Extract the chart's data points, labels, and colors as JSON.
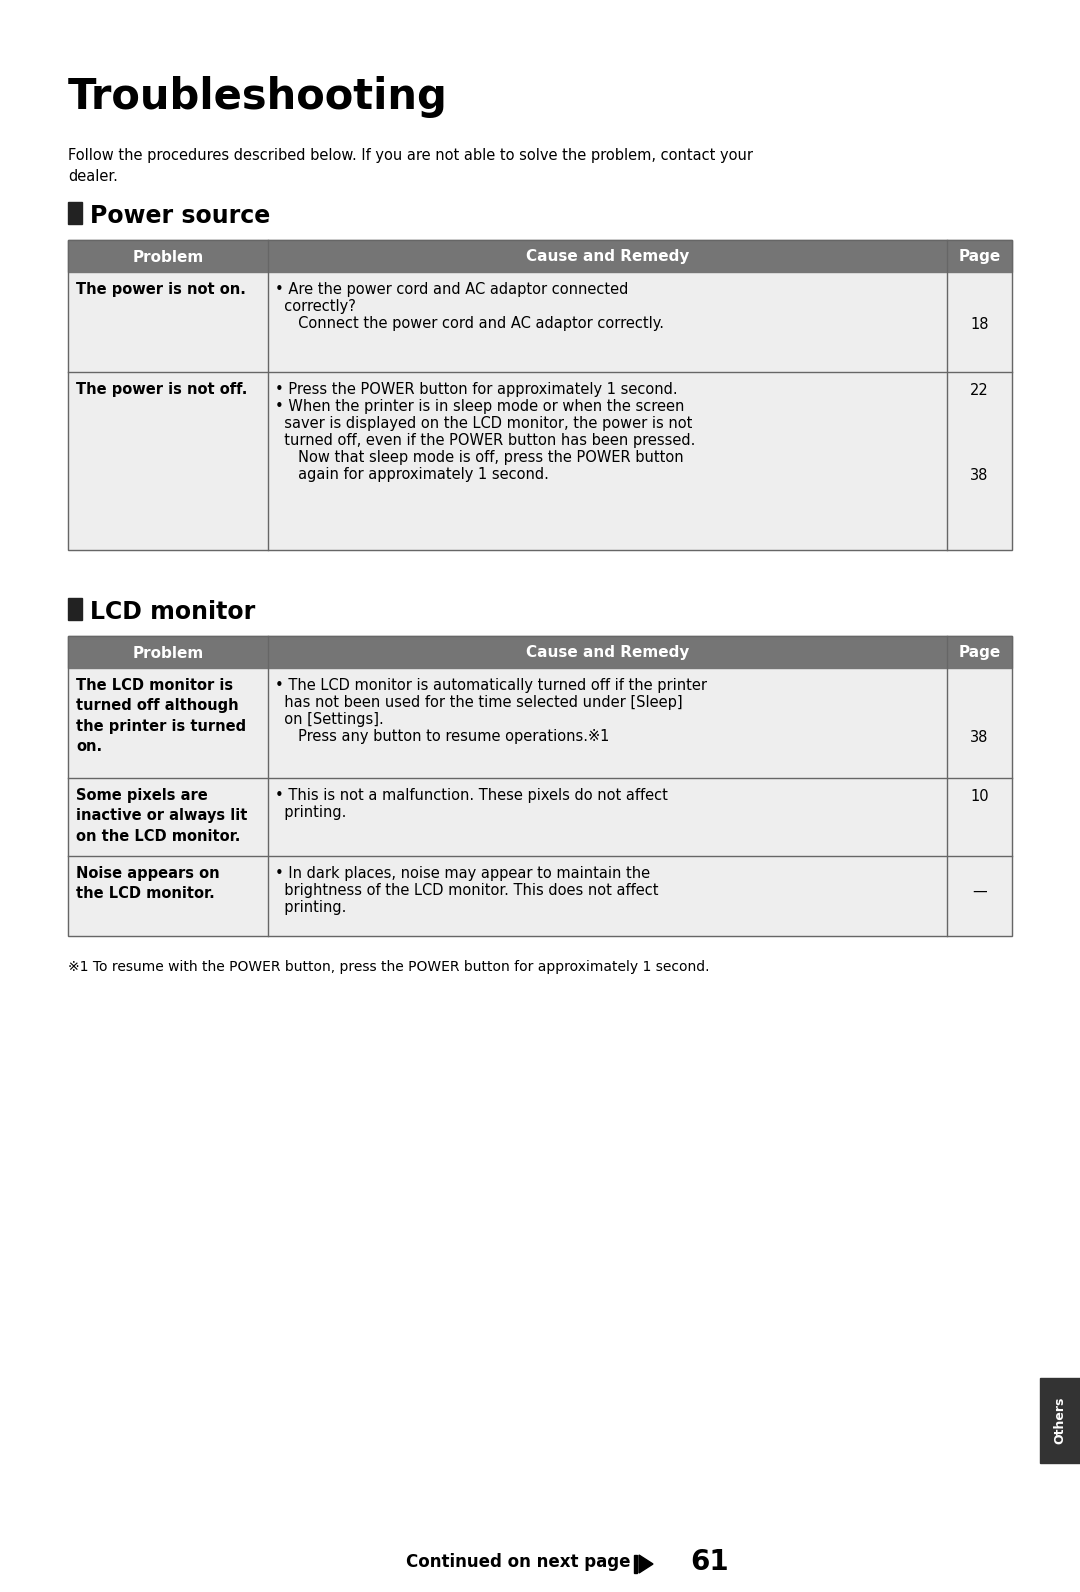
{
  "page_bg": "#ffffff",
  "title": "Troubleshooting",
  "intro": "Follow the procedures described below. If you are not able to solve the problem, contact your\ndealer.",
  "section1_title": "Power source",
  "section2_title": "LCD monitor",
  "header_bg": "#757575",
  "header_fg": "#ffffff",
  "row_bg": "#eeeeee",
  "col_header": [
    "Problem",
    "Cause and Remedy",
    "Page"
  ],
  "power_rows": [
    {
      "problem": "The power is not on.",
      "cause_lines": [
        {
          "text": "• Are the power cord and AC adaptor connected",
          "indent": 0
        },
        {
          "text": "  correctly?",
          "indent": 0
        },
        {
          "text": "     Connect the power cord and AC adaptor correctly.",
          "indent": 0
        }
      ],
      "page_line": 2,
      "page": "18"
    },
    {
      "problem": "The power is not off.",
      "cause_lines": [
        {
          "text": "• Press the POWER button for approximately 1 second.",
          "indent": 0
        },
        {
          "text": "• When the printer is in sleep mode or when the screen",
          "indent": 0
        },
        {
          "text": "  saver is displayed on the LCD monitor, the power is not",
          "indent": 0
        },
        {
          "text": "  turned off, even if the POWER button has been pressed.",
          "indent": 0
        },
        {
          "text": "     Now that sleep mode is off, press the POWER button",
          "indent": 0
        },
        {
          "text": "     again for approximately 1 second.",
          "indent": 0
        }
      ],
      "page1_line": 0,
      "page1": "22",
      "page2_line": 5,
      "page2": "38"
    }
  ],
  "lcd_rows": [
    {
      "problem": "The LCD monitor is\nturned off although\nthe printer is turned\non.",
      "cause_lines": [
        {
          "text": "• The LCD monitor is automatically turned off if the printer"
        },
        {
          "text": "  has not been used for the time selected under [Sleep]"
        },
        {
          "text": "  on [Settings]."
        },
        {
          "text": "     Press any button to resume operations.※1"
        }
      ],
      "page_line": 3,
      "page": "38"
    },
    {
      "problem": "Some pixels are\ninactive or always lit\non the LCD monitor.",
      "cause_lines": [
        {
          "text": "• This is not a malfunction. These pixels do not affect"
        },
        {
          "text": "  printing."
        }
      ],
      "page_line": 0,
      "page": "10"
    },
    {
      "problem": "Noise appears on\nthe LCD monitor.",
      "cause_lines": [
        {
          "text": "• In dark places, noise may appear to maintain the"
        },
        {
          "text": "  brightness of the LCD monitor. This does not affect"
        },
        {
          "text": "  printing."
        }
      ],
      "page_line": 1,
      "page": "—"
    }
  ],
  "footnote": "※1 To resume with the POWER button, press the POWER button for approximately 1 second.",
  "continued": "Continued on next page",
  "page_number": "61",
  "others_label": "Others"
}
